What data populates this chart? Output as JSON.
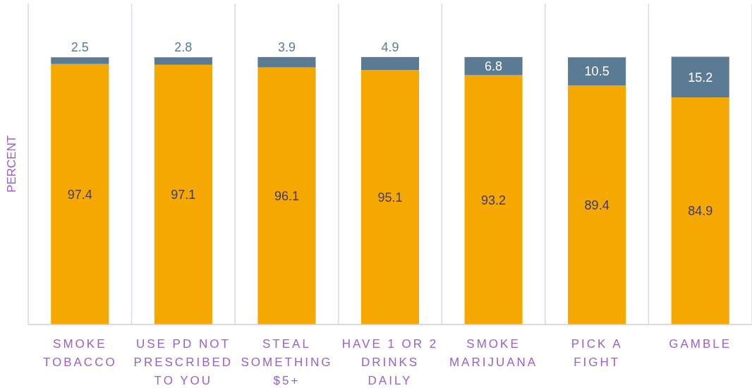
{
  "chart_data": {
    "type": "bar",
    "stacked": true,
    "ylabel": "PERCENT",
    "categories": [
      "SMOKE TOBACCO",
      "USE PD NOT PRESCRIBED TO YOU",
      "STEAL SOMETHING $5+",
      "HAVE 1 OR 2 DRINKS DAILY",
      "SMOKE MARIJUANA",
      "PICK A FIGHT",
      "GAMBLE"
    ],
    "series": [
      {
        "color": "#f5a800",
        "values": [
          97.4,
          97.1,
          96.1,
          95.1,
          93.2,
          89.4,
          84.9
        ]
      },
      {
        "color": "#5b7b95",
        "values": [
          2.5,
          2.8,
          3.9,
          4.9,
          6.8,
          10.5,
          15.2
        ]
      }
    ],
    "ylim": [
      0,
      120
    ],
    "grid": "x",
    "data_labels": true
  }
}
